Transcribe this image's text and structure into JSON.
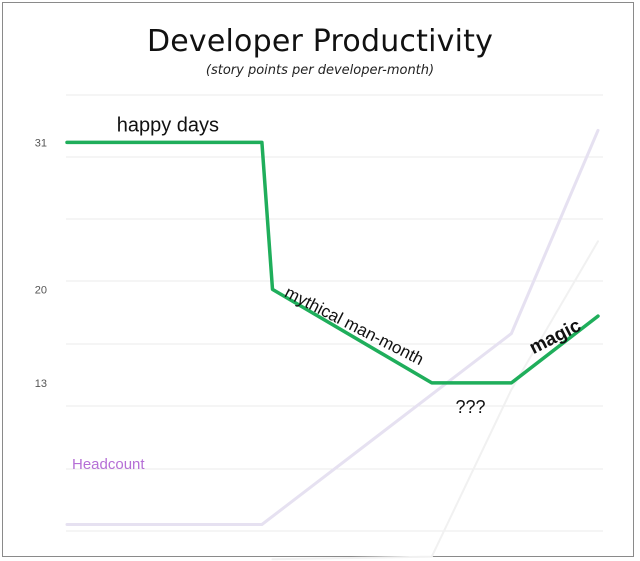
{
  "chart_data": {
    "type": "line",
    "title": "Developer Productivity",
    "subtitle": "(story points per developer-month)",
    "y_ticks": [
      31,
      20,
      13
    ],
    "grid": true,
    "colors": {
      "productivity": "#1fae5b",
      "headcount": "#e6e1f1",
      "headcount_label": "#b56fd6",
      "faint": "#f1f1f1",
      "grid": "#ebebeb",
      "tick_label": "#555555"
    },
    "series": [
      {
        "key": "productivity",
        "x": [
          0,
          0.367,
          0.387,
          0.687,
          0.837,
          1.0
        ],
        "y": [
          31,
          31,
          20,
          13,
          13,
          18
        ]
      },
      {
        "key": "headcount",
        "name": "Headcount",
        "x": [
          0,
          0.367,
          0.837,
          1.0
        ],
        "y": [
          2.4,
          2.4,
          16.7,
          31.9
        ]
      },
      {
        "key": "faint",
        "x": [
          0.387,
          0.687,
          0.837,
          1.0
        ],
        "y": [
          -0.2,
          0,
          12.5,
          23.6
        ]
      }
    ],
    "annotations": [
      {
        "key": "happy",
        "text": "happy days",
        "x": 0.19,
        "y": 32.2,
        "rotate": 0
      },
      {
        "key": "mythical",
        "text": "mythical man-month",
        "x": 0.54,
        "y": 17.2,
        "rotate": 27
      },
      {
        "key": "qqq",
        "text": "???",
        "x": 0.76,
        "y": 11.1,
        "rotate": 0
      },
      {
        "key": "magic",
        "text": "magic",
        "x": 0.92,
        "y": 16.4,
        "rotate": -27
      }
    ]
  }
}
